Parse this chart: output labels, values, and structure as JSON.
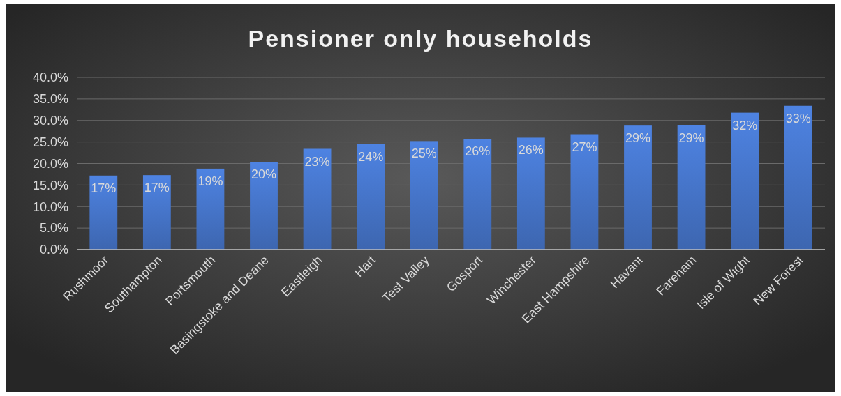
{
  "chart_data": {
    "type": "bar",
    "title": "Pensioner only households",
    "categories": [
      "Rushmoor",
      "Southampton",
      "Portsmouth",
      "Basingstoke and Deane",
      "Eastleigh",
      "Hart",
      "Test Valley",
      "Gosport",
      "Winchester",
      "East Hampshire",
      "Havant",
      "Fareham",
      "Isle of Wight",
      "New Forest"
    ],
    "values": [
      17.2,
      17.3,
      18.8,
      20.4,
      23.4,
      24.5,
      25.2,
      25.7,
      26.0,
      26.8,
      28.8,
      28.9,
      31.8,
      33.4
    ],
    "value_labels": [
      "17%",
      "17%",
      "19%",
      "20%",
      "23%",
      "24%",
      "25%",
      "26%",
      "26%",
      "27%",
      "29%",
      "29%",
      "32%",
      "33%"
    ],
    "color": "#4472c4",
    "ylim": [
      0,
      40
    ],
    "yticks": [
      {
        "value": 0,
        "label": "0.0%"
      },
      {
        "value": 5,
        "label": "5.0%"
      },
      {
        "value": 10,
        "label": "10.0%"
      },
      {
        "value": 15,
        "label": "15.0%"
      },
      {
        "value": 20,
        "label": "20.0%"
      },
      {
        "value": 25,
        "label": "25.0%"
      },
      {
        "value": 30,
        "label": "30.0%"
      },
      {
        "value": 35,
        "label": "35.0%"
      },
      {
        "value": 40,
        "label": "40.0%"
      }
    ],
    "grid": "y"
  }
}
